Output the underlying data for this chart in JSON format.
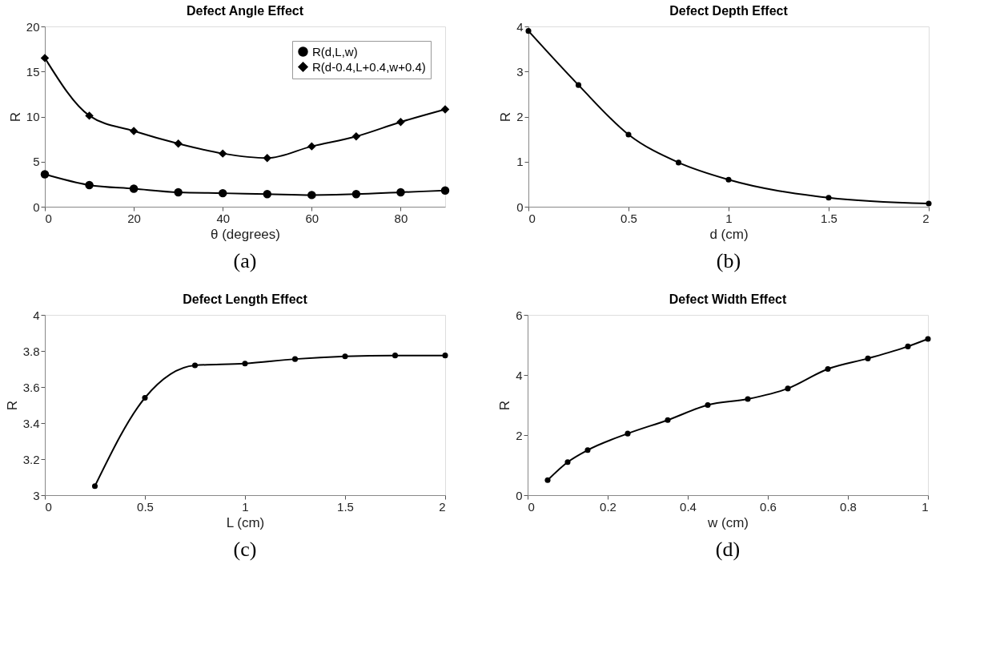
{
  "chart_data": [
    {
      "type": "line",
      "title": "Defect Angle Effect",
      "xlabel": "θ (degrees)",
      "ylabel": "R",
      "annotations": [
        "(a)"
      ],
      "x": [
        0,
        10,
        20,
        30,
        40,
        50,
        60,
        70,
        80,
        90
      ],
      "xlim": [
        0,
        90
      ],
      "xticks": [
        0,
        20,
        40,
        60,
        80
      ],
      "ylim": [
        0,
        20
      ],
      "yticks": [
        0,
        5,
        10,
        15,
        20
      ],
      "grid": false,
      "legend": "top right",
      "line_style": "solid",
      "series": [
        {
          "name": "R(d,L,w)",
          "color": "#000000",
          "marker": "circle",
          "values": [
            3.6,
            2.4,
            2.0,
            1.6,
            1.5,
            1.4,
            1.3,
            1.4,
            1.6,
            1.8
          ]
        },
        {
          "name": "R(d-0.4,L+0.4,w+0.4)",
          "color": "#000000",
          "marker": "diamond",
          "values": [
            16.5,
            10.1,
            8.4,
            7.0,
            5.9,
            5.4,
            6.7,
            7.8,
            9.4,
            10.8
          ]
        }
      ]
    },
    {
      "type": "line",
      "title": "Defect Depth Effect",
      "xlabel": "d (cm)",
      "ylabel": "R",
      "annotations": [
        "(b)"
      ],
      "x": [
        0,
        0.25,
        0.5,
        0.75,
        1,
        1.5,
        2
      ],
      "xlim": [
        0,
        2
      ],
      "xticks": [
        0,
        0.5,
        1,
        1.5,
        2
      ],
      "ylim": [
        0,
        4
      ],
      "yticks": [
        0,
        1,
        2,
        3,
        4
      ],
      "grid": false,
      "marker": "circle",
      "line_style": "solid",
      "series": [
        {
          "color": "#000000",
          "values": [
            3.9,
            2.7,
            1.6,
            0.98,
            0.6,
            0.2,
            0.07
          ]
        }
      ]
    },
    {
      "type": "line",
      "title": "Defect Length Effect",
      "xlabel": "L (cm)",
      "ylabel": "R",
      "annotations": [
        "(c)"
      ],
      "x": [
        0.25,
        0.5,
        0.75,
        1,
        1.25,
        1.5,
        1.75,
        2
      ],
      "xlim": [
        0,
        2
      ],
      "xticks": [
        0,
        0.5,
        1,
        1.5,
        2
      ],
      "ylim": [
        3,
        4
      ],
      "yticks": [
        3,
        3.2,
        3.4,
        3.6,
        3.8,
        4
      ],
      "grid": false,
      "marker": "circle",
      "line_style": "solid",
      "series": [
        {
          "color": "#000000",
          "values": [
            3.05,
            3.54,
            3.72,
            3.73,
            3.755,
            3.77,
            3.775,
            3.775
          ]
        }
      ]
    },
    {
      "type": "line",
      "title": "Defect Width Effect",
      "xlabel": "w (cm)",
      "ylabel": "R",
      "annotations": [
        "(d)"
      ],
      "x": [
        0.05,
        0.1,
        0.15,
        0.25,
        0.35,
        0.45,
        0.55,
        0.65,
        0.75,
        0.85,
        0.95,
        1
      ],
      "xlim": [
        0,
        1
      ],
      "xticks": [
        0,
        0.2,
        0.4,
        0.6,
        0.8,
        1
      ],
      "ylim": [
        0,
        6
      ],
      "yticks": [
        0,
        2,
        4,
        6
      ],
      "grid": false,
      "marker": "circle",
      "line_style": "solid",
      "series": [
        {
          "color": "#000000",
          "values": [
            0.5,
            1.1,
            1.5,
            2.05,
            2.5,
            3.0,
            3.2,
            3.55,
            4.2,
            4.55,
            4.95,
            5.2
          ]
        }
      ]
    }
  ]
}
